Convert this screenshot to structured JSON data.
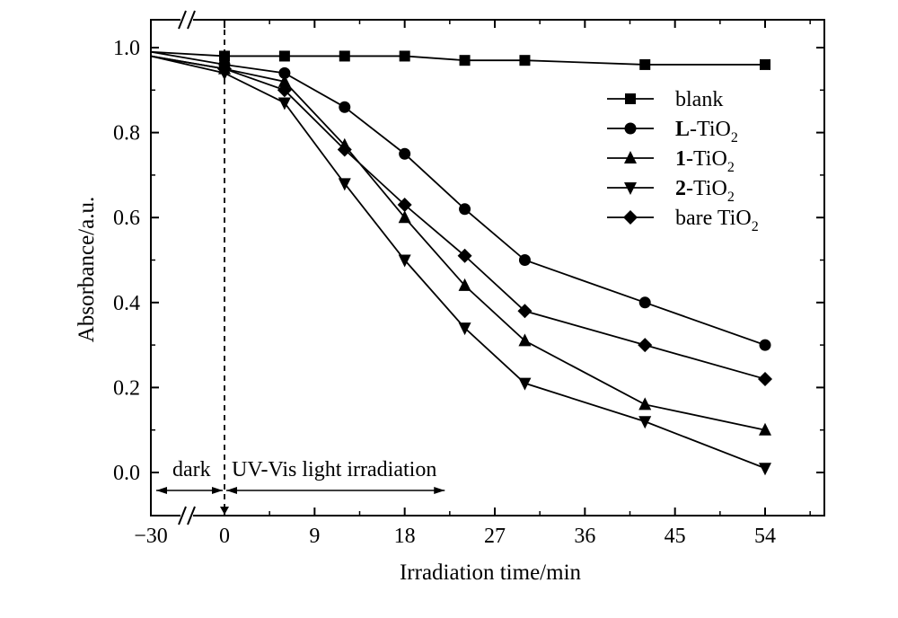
{
  "chart_data": {
    "type": "line",
    "xlabel": "Irradiation time/min",
    "ylabel": "Absorbance/a.u.",
    "xlim": [
      -30,
      60
    ],
    "ylim": [
      -0.1,
      1.05
    ],
    "x_ticks": [
      -30,
      0,
      9,
      18,
      27,
      36,
      45,
      54
    ],
    "x_tick_labels": [
      "−30",
      "0",
      "9",
      "18",
      "27",
      "36",
      "45",
      "54"
    ],
    "y_ticks": [
      0.0,
      0.2,
      0.4,
      0.6,
      0.8,
      1.0
    ],
    "y_tick_labels": [
      "0.0",
      "0.2",
      "0.4",
      "0.6",
      "0.8",
      "1.0"
    ],
    "axis_break": "between −30 and 0 on the x axis",
    "grid": false,
    "legend_position": "top-right",
    "annotations": {
      "dark_label": "dark",
      "light_label": "UV-Vis light irradiation",
      "separator_x": 0
    },
    "series": [
      {
        "name": "blank",
        "name_bold": "",
        "name_rest": "blank",
        "subscript": "",
        "marker": "square",
        "x": [
          -30,
          0,
          6,
          12,
          18,
          24,
          30,
          42,
          54
        ],
        "y": [
          0.99,
          0.98,
          0.98,
          0.98,
          0.98,
          0.97,
          0.97,
          0.96,
          0.96
        ]
      },
      {
        "name": "L-TiO2",
        "name_bold": "L",
        "name_rest": "-TiO",
        "subscript": "2",
        "marker": "circle",
        "x": [
          -30,
          0,
          6,
          12,
          18,
          24,
          30,
          42,
          54
        ],
        "y": [
          0.99,
          0.96,
          0.94,
          0.86,
          0.75,
          0.62,
          0.5,
          0.4,
          0.3
        ]
      },
      {
        "name": "1-TiO2",
        "name_bold": "1",
        "name_rest": "-TiO",
        "subscript": "2",
        "marker": "triangle-up",
        "x": [
          -30,
          0,
          6,
          12,
          18,
          24,
          30,
          42,
          54
        ],
        "y": [
          0.98,
          0.95,
          0.92,
          0.77,
          0.6,
          0.44,
          0.31,
          0.16,
          0.1
        ]
      },
      {
        "name": "2-TiO2",
        "name_bold": "2",
        "name_rest": "-TiO",
        "subscript": "2",
        "marker": "triangle-down",
        "x": [
          -30,
          0,
          6,
          12,
          18,
          24,
          30,
          42,
          54
        ],
        "y": [
          0.98,
          0.94,
          0.87,
          0.68,
          0.5,
          0.34,
          0.21,
          0.12,
          0.01
        ]
      },
      {
        "name": "bare TiO2",
        "name_bold": "",
        "name_rest": "bare TiO",
        "subscript": "2",
        "marker": "diamond",
        "x": [
          -30,
          0,
          6,
          12,
          18,
          24,
          30,
          42,
          54
        ],
        "y": [
          0.98,
          0.95,
          0.9,
          0.76,
          0.63,
          0.51,
          0.38,
          0.3,
          0.22
        ]
      }
    ]
  }
}
